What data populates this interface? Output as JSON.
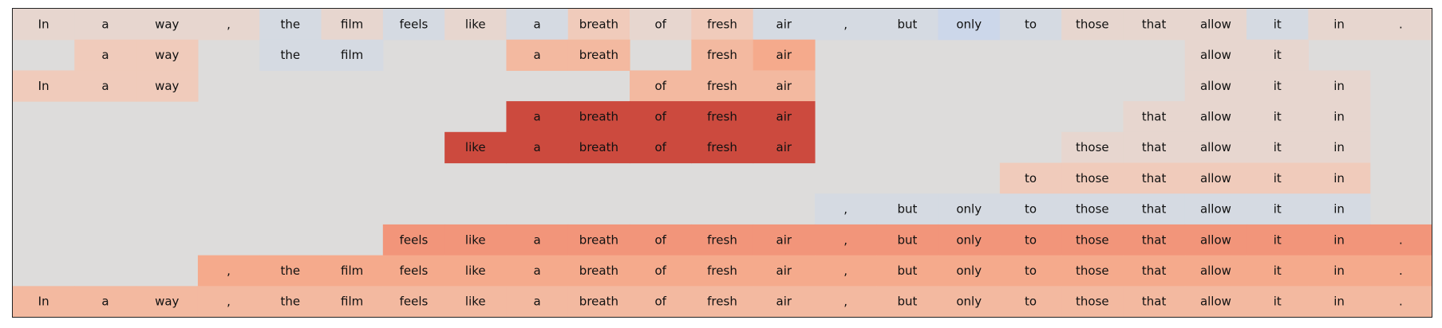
{
  "chart_data": {
    "type": "heatmap",
    "title": "",
    "xlabel": "",
    "ylabel": "",
    "background_color": "#dddcdb",
    "colors": {
      "blue_light": "#d5dae2",
      "blue": "#ccd7ea",
      "neutral": "#dddcdb",
      "peach_faint": "#e7d6cf",
      "peach_light": "#f0cbbb",
      "peach": "#f3b9a0",
      "salmon": "#f5aa8c",
      "salmon_strong": "#f2957a",
      "red": "#cc4a3e"
    },
    "tokens": [
      "In",
      "a",
      "way",
      ",",
      "the",
      "film",
      "feels",
      "like",
      "a",
      "breath",
      "of",
      "fresh",
      "air",
      ",",
      "but",
      "only",
      "to",
      "those",
      "that",
      "allow",
      "it",
      "in",
      "."
    ],
    "rows": [
      [
        {
          "t": "In",
          "c": "peach_faint"
        },
        {
          "t": "a",
          "c": "peach_faint"
        },
        {
          "t": "way",
          "c": "peach_faint"
        },
        {
          "t": ",",
          "c": "peach_faint"
        },
        {
          "t": "the",
          "c": "blue_light"
        },
        {
          "t": "film",
          "c": "peach_faint"
        },
        {
          "t": "feels",
          "c": "blue_light"
        },
        {
          "t": "like",
          "c": "peach_faint"
        },
        {
          "t": "a",
          "c": "blue_light"
        },
        {
          "t": "breath",
          "c": "peach_light"
        },
        {
          "t": "of",
          "c": "peach_faint"
        },
        {
          "t": "fresh",
          "c": "peach_light"
        },
        {
          "t": "air",
          "c": "blue_light"
        },
        {
          "t": ",",
          "c": "blue_light"
        },
        {
          "t": "but",
          "c": "blue_light"
        },
        {
          "t": "only",
          "c": "blue"
        },
        {
          "t": "to",
          "c": "blue_light"
        },
        {
          "t": "those",
          "c": "peach_faint"
        },
        {
          "t": "that",
          "c": "peach_faint"
        },
        {
          "t": "allow",
          "c": "peach_faint"
        },
        {
          "t": "it",
          "c": "blue_light"
        },
        {
          "t": "in",
          "c": "peach_faint"
        },
        {
          "t": ".",
          "c": "peach_faint"
        }
      ],
      [
        null,
        {
          "t": "a",
          "c": "peach_light"
        },
        {
          "t": "way",
          "c": "peach_light"
        },
        null,
        {
          "t": "the",
          "c": "blue_light"
        },
        {
          "t": "film",
          "c": "blue_light"
        },
        null,
        null,
        {
          "t": "a",
          "c": "peach"
        },
        {
          "t": "breath",
          "c": "peach"
        },
        null,
        {
          "t": "fresh",
          "c": "peach"
        },
        {
          "t": "air",
          "c": "salmon"
        },
        null,
        null,
        null,
        null,
        null,
        null,
        {
          "t": "allow",
          "c": "peach_faint"
        },
        {
          "t": "it",
          "c": "peach_faint"
        },
        null,
        null
      ],
      [
        {
          "t": "In",
          "c": "peach_light"
        },
        {
          "t": "a",
          "c": "peach_light"
        },
        {
          "t": "way",
          "c": "peach_light"
        },
        null,
        null,
        null,
        null,
        null,
        null,
        null,
        {
          "t": "of",
          "c": "peach"
        },
        {
          "t": "fresh",
          "c": "peach"
        },
        {
          "t": "air",
          "c": "peach"
        },
        null,
        null,
        null,
        null,
        null,
        null,
        {
          "t": "allow",
          "c": "peach_faint"
        },
        {
          "t": "it",
          "c": "peach_faint"
        },
        {
          "t": "in",
          "c": "peach_faint"
        },
        null
      ],
      [
        null,
        null,
        null,
        null,
        null,
        null,
        null,
        null,
        {
          "t": "a",
          "c": "red"
        },
        {
          "t": "breath",
          "c": "red"
        },
        {
          "t": "of",
          "c": "red"
        },
        {
          "t": "fresh",
          "c": "red"
        },
        {
          "t": "air",
          "c": "red"
        },
        null,
        null,
        null,
        null,
        null,
        {
          "t": "that",
          "c": "peach_faint"
        },
        {
          "t": "allow",
          "c": "peach_faint"
        },
        {
          "t": "it",
          "c": "peach_faint"
        },
        {
          "t": "in",
          "c": "peach_faint"
        },
        null
      ],
      [
        null,
        null,
        null,
        null,
        null,
        null,
        null,
        {
          "t": "like",
          "c": "red"
        },
        {
          "t": "a",
          "c": "red"
        },
        {
          "t": "breath",
          "c": "red"
        },
        {
          "t": "of",
          "c": "red"
        },
        {
          "t": "fresh",
          "c": "red"
        },
        {
          "t": "air",
          "c": "red"
        },
        null,
        null,
        null,
        null,
        {
          "t": "those",
          "c": "peach_faint"
        },
        {
          "t": "that",
          "c": "peach_faint"
        },
        {
          "t": "allow",
          "c": "peach_faint"
        },
        {
          "t": "it",
          "c": "peach_faint"
        },
        {
          "t": "in",
          "c": "peach_faint"
        },
        null
      ],
      [
        null,
        null,
        null,
        null,
        null,
        null,
        null,
        null,
        null,
        null,
        null,
        null,
        null,
        null,
        null,
        null,
        {
          "t": "to",
          "c": "peach_light"
        },
        {
          "t": "those",
          "c": "peach_light"
        },
        {
          "t": "that",
          "c": "peach_light"
        },
        {
          "t": "allow",
          "c": "peach_light"
        },
        {
          "t": "it",
          "c": "peach_light"
        },
        {
          "t": "in",
          "c": "peach_light"
        },
        null
      ],
      [
        null,
        null,
        null,
        null,
        null,
        null,
        null,
        null,
        null,
        null,
        null,
        null,
        null,
        {
          "t": ",",
          "c": "blue_light"
        },
        {
          "t": "but",
          "c": "blue_light"
        },
        {
          "t": "only",
          "c": "blue_light"
        },
        {
          "t": "to",
          "c": "blue_light"
        },
        {
          "t": "those",
          "c": "blue_light"
        },
        {
          "t": "that",
          "c": "blue_light"
        },
        {
          "t": "allow",
          "c": "blue_light"
        },
        {
          "t": "it",
          "c": "blue_light"
        },
        {
          "t": "in",
          "c": "blue_light"
        },
        null
      ],
      [
        null,
        null,
        null,
        null,
        null,
        null,
        {
          "t": "feels",
          "c": "salmon_strong"
        },
        {
          "t": "like",
          "c": "salmon_strong"
        },
        {
          "t": "a",
          "c": "salmon_strong"
        },
        {
          "t": "breath",
          "c": "salmon_strong"
        },
        {
          "t": "of",
          "c": "salmon_strong"
        },
        {
          "t": "fresh",
          "c": "salmon_strong"
        },
        {
          "t": "air",
          "c": "salmon_strong"
        },
        {
          "t": ",",
          "c": "salmon_strong"
        },
        {
          "t": "but",
          "c": "salmon_strong"
        },
        {
          "t": "only",
          "c": "salmon_strong"
        },
        {
          "t": "to",
          "c": "salmon_strong"
        },
        {
          "t": "those",
          "c": "salmon_strong"
        },
        {
          "t": "that",
          "c": "salmon_strong"
        },
        {
          "t": "allow",
          "c": "salmon_strong"
        },
        {
          "t": "it",
          "c": "salmon_strong"
        },
        {
          "t": "in",
          "c": "salmon_strong"
        },
        {
          "t": ".",
          "c": "salmon_strong"
        }
      ],
      [
        null,
        null,
        null,
        {
          "t": ",",
          "c": "salmon"
        },
        {
          "t": "the",
          "c": "salmon"
        },
        {
          "t": "film",
          "c": "salmon"
        },
        {
          "t": "feels",
          "c": "salmon"
        },
        {
          "t": "like",
          "c": "salmon"
        },
        {
          "t": "a",
          "c": "salmon"
        },
        {
          "t": "breath",
          "c": "salmon"
        },
        {
          "t": "of",
          "c": "salmon"
        },
        {
          "t": "fresh",
          "c": "salmon"
        },
        {
          "t": "air",
          "c": "salmon"
        },
        {
          "t": ",",
          "c": "salmon"
        },
        {
          "t": "but",
          "c": "salmon"
        },
        {
          "t": "only",
          "c": "salmon"
        },
        {
          "t": "to",
          "c": "salmon"
        },
        {
          "t": "those",
          "c": "salmon"
        },
        {
          "t": "that",
          "c": "salmon"
        },
        {
          "t": "allow",
          "c": "salmon"
        },
        {
          "t": "it",
          "c": "salmon"
        },
        {
          "t": "in",
          "c": "salmon"
        },
        {
          "t": ".",
          "c": "salmon"
        }
      ],
      [
        {
          "t": "In",
          "c": "peach"
        },
        {
          "t": "a",
          "c": "peach"
        },
        {
          "t": "way",
          "c": "peach"
        },
        {
          "t": ",",
          "c": "peach"
        },
        {
          "t": "the",
          "c": "peach"
        },
        {
          "t": "film",
          "c": "peach"
        },
        {
          "t": "feels",
          "c": "peach"
        },
        {
          "t": "like",
          "c": "peach"
        },
        {
          "t": "a",
          "c": "peach"
        },
        {
          "t": "breath",
          "c": "peach"
        },
        {
          "t": "of",
          "c": "peach"
        },
        {
          "t": "fresh",
          "c": "peach"
        },
        {
          "t": "air",
          "c": "peach"
        },
        {
          "t": ",",
          "c": "peach"
        },
        {
          "t": "but",
          "c": "peach"
        },
        {
          "t": "only",
          "c": "peach"
        },
        {
          "t": "to",
          "c": "peach"
        },
        {
          "t": "those",
          "c": "peach"
        },
        {
          "t": "that",
          "c": "peach"
        },
        {
          "t": "allow",
          "c": "peach"
        },
        {
          "t": "it",
          "c": "peach"
        },
        {
          "t": "in",
          "c": "peach"
        },
        {
          "t": ".",
          "c": "peach"
        }
      ]
    ]
  }
}
